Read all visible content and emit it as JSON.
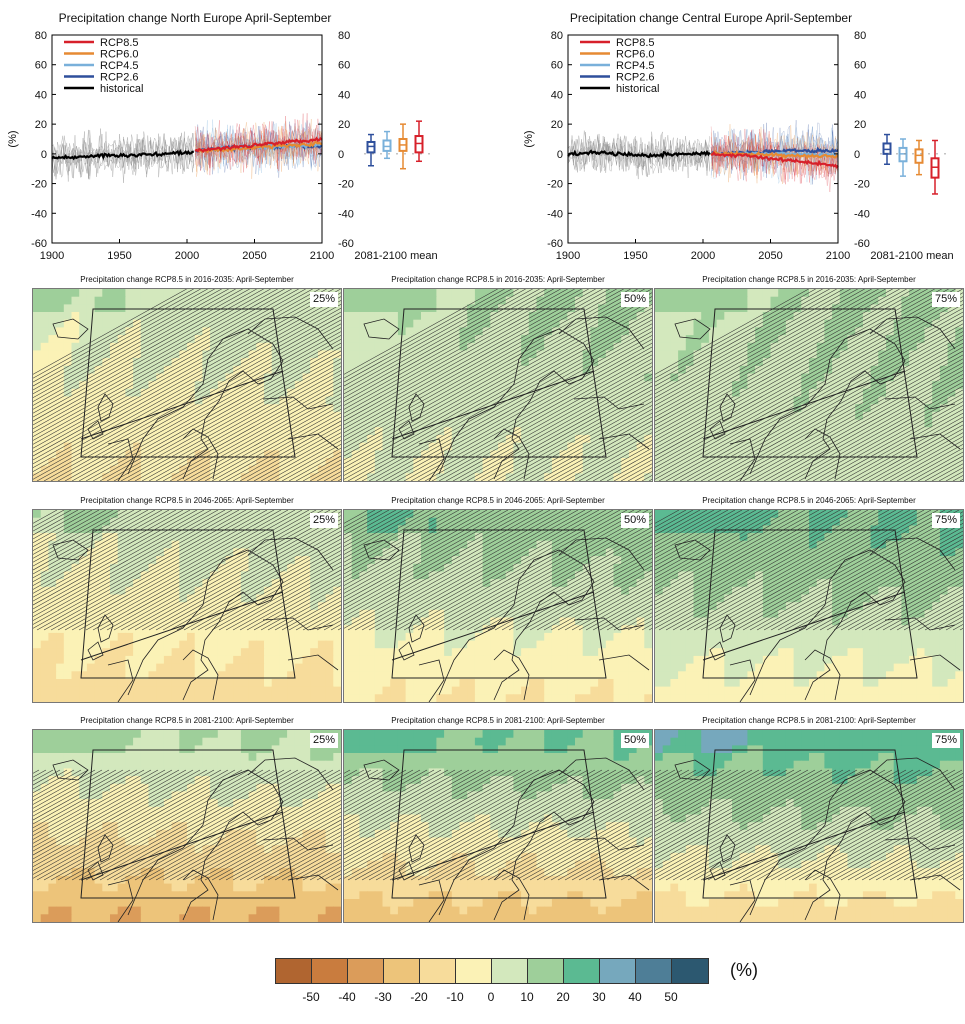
{
  "chart_data": [
    {
      "type": "line",
      "title": "Precipitation change North Europe April-September",
      "ylabel": "(%)",
      "ylim": [
        -60,
        80
      ],
      "xlim": [
        1900,
        2100
      ],
      "x_ticks": [
        "1900",
        "1950",
        "2000",
        "2050",
        "2100"
      ],
      "y_ticks": [
        "80",
        "60",
        "40",
        "20",
        "0",
        "-20",
        "-40",
        "-60"
      ],
      "legend": [
        "RCP8.5",
        "RCP6.0",
        "RCP4.5",
        "RCP2.6",
        "historical"
      ],
      "legend_position": "top-left",
      "series": [
        {
          "name": "historical",
          "x": [
            1900,
            1920,
            1940,
            1960,
            1980,
            2005
          ],
          "y": [
            -3,
            -2,
            -1,
            -1,
            0,
            1
          ]
        },
        {
          "name": "RCP2.6",
          "x": [
            2006,
            2030,
            2060,
            2100
          ],
          "y": [
            2,
            4,
            5,
            5
          ]
        },
        {
          "name": "RCP4.5",
          "x": [
            2006,
            2030,
            2060,
            2100
          ],
          "y": [
            2,
            4,
            5,
            6
          ]
        },
        {
          "name": "RCP6.0",
          "x": [
            2006,
            2030,
            2060,
            2100
          ],
          "y": [
            2,
            3,
            5,
            7
          ]
        },
        {
          "name": "RCP8.5",
          "x": [
            2006,
            2030,
            2060,
            2100
          ],
          "y": [
            2,
            4,
            7,
            10
          ]
        }
      ],
      "mean_label": "2081-2100 mean",
      "boxplots": [
        {
          "name": "RCP2.6",
          "min": -8,
          "q1": 1,
          "median": 5,
          "q3": 8,
          "max": 13
        },
        {
          "name": "RCP4.5",
          "min": -3,
          "q1": 2,
          "median": 5,
          "q3": 9,
          "max": 15
        },
        {
          "name": "RCP6.0",
          "min": -10,
          "q1": 2,
          "median": 6,
          "q3": 10,
          "max": 20
        },
        {
          "name": "RCP8.5",
          "min": -5,
          "q1": 1,
          "median": 7,
          "q3": 12,
          "max": 22
        }
      ]
    },
    {
      "type": "line",
      "title": "Precipitation change Central Europe April-September",
      "ylabel": "(%)",
      "ylim": [
        -60,
        80
      ],
      "xlim": [
        1900,
        2100
      ],
      "x_ticks": [
        "1900",
        "1950",
        "2000",
        "2050",
        "2100"
      ],
      "y_ticks": [
        "80",
        "60",
        "40",
        "20",
        "0",
        "-20",
        "-40",
        "-60"
      ],
      "legend": [
        "RCP8.5",
        "RCP6.0",
        "RCP4.5",
        "RCP2.6",
        "historical"
      ],
      "legend_position": "top-left",
      "series": [
        {
          "name": "historical",
          "x": [
            1900,
            1920,
            1940,
            1960,
            1980,
            2005
          ],
          "y": [
            0,
            1,
            0,
            -1,
            0,
            0
          ]
        },
        {
          "name": "RCP2.6",
          "x": [
            2006,
            2030,
            2060,
            2100
          ],
          "y": [
            0,
            1,
            2,
            2
          ]
        },
        {
          "name": "RCP4.5",
          "x": [
            2006,
            2030,
            2060,
            2100
          ],
          "y": [
            0,
            0,
            0,
            -1
          ]
        },
        {
          "name": "RCP6.0",
          "x": [
            2006,
            2030,
            2060,
            2100
          ],
          "y": [
            0,
            0,
            -1,
            -2
          ]
        },
        {
          "name": "RCP8.5",
          "x": [
            2006,
            2030,
            2060,
            2100
          ],
          "y": [
            0,
            -1,
            -4,
            -8
          ]
        }
      ],
      "mean_label": "2081-2100 mean",
      "boxplots": [
        {
          "name": "RCP2.6",
          "min": -7,
          "q1": 0,
          "median": 3,
          "q3": 7,
          "max": 13
        },
        {
          "name": "RCP4.5",
          "min": -15,
          "q1": -5,
          "median": 0,
          "q3": 4,
          "max": 10
        },
        {
          "name": "RCP6.0",
          "min": -14,
          "q1": -6,
          "median": -1,
          "q3": 3,
          "max": 9
        },
        {
          "name": "RCP8.5",
          "min": -27,
          "q1": -16,
          "median": -9,
          "q3": -3,
          "max": 9
        }
      ]
    },
    {
      "type": "heatmap",
      "unit": "(%)",
      "panels": [
        {
          "title": "Precipitation change RCP8.5 in 2016-2035: April-September",
          "percentile": "25%",
          "north_change": 5,
          "south_change": -10,
          "hatched": true
        },
        {
          "title": "Precipitation change RCP8.5 in 2016-2035: April-September",
          "percentile": "50%",
          "north_change": 10,
          "south_change": 0,
          "hatched": true
        },
        {
          "title": "Precipitation change RCP8.5 in 2016-2035: April-September",
          "percentile": "75%",
          "north_change": 10,
          "south_change": 5,
          "hatched": true
        },
        {
          "title": "Precipitation change RCP8.5 in 2046-2065: April-September",
          "percentile": "25%",
          "north_change": 5,
          "south_change": -15,
          "hatched": true
        },
        {
          "title": "Precipitation change RCP8.5 in 2046-2065: April-September",
          "percentile": "50%",
          "north_change": 15,
          "south_change": -10,
          "hatched": true
        },
        {
          "title": "Precipitation change RCP8.5 in 2046-2065: April-September",
          "percentile": "75%",
          "north_change": 20,
          "south_change": -5,
          "hatched": true
        },
        {
          "title": "Precipitation change RCP8.5 in 2081-2100: April-September",
          "percentile": "25%",
          "north_change": 10,
          "south_change": -30,
          "hatched": true
        },
        {
          "title": "Precipitation change RCP8.5 in 2081-2100: April-September",
          "percentile": "50%",
          "north_change": 20,
          "south_change": -25,
          "hatched": true
        },
        {
          "title": "Precipitation change RCP8.5 in 2081-2100: April-September",
          "percentile": "75%",
          "north_change": 25,
          "south_change": -15,
          "hatched": true
        }
      ],
      "colorbar": {
        "ticks": [
          "-50",
          "-40",
          "-30",
          "-20",
          "-10",
          "0",
          "10",
          "20",
          "30",
          "40",
          "50"
        ],
        "colors": [
          "#b06530",
          "#c97c3e",
          "#db9c5a",
          "#edc47a",
          "#f7dc9b",
          "#fbf2b6",
          "#d3e8bd",
          "#9ecf9a",
          "#5bba92",
          "#76a8bd",
          "#4e7e97",
          "#2c5870"
        ]
      }
    }
  ],
  "colors": {
    "RCP8.5": "#d7202a",
    "RCP6.0": "#e68a33",
    "RCP4.5": "#79b0da",
    "RCP2.6": "#2e4f9c",
    "historical": "#000000",
    "spread_hist": "#8d8d8d"
  }
}
